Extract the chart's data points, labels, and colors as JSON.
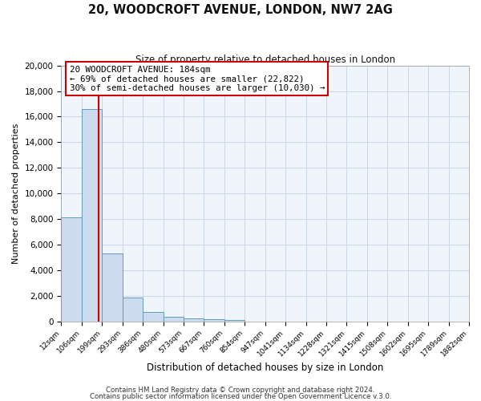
{
  "title": "20, WOODCROFT AVENUE, LONDON, NW7 2AG",
  "subtitle": "Size of property relative to detached houses in London",
  "xlabel": "Distribution of detached houses by size in London",
  "ylabel": "Number of detached properties",
  "bar_values": [
    8150,
    16600,
    5300,
    1850,
    700,
    330,
    220,
    130,
    100,
    0,
    0,
    0,
    0,
    0,
    0,
    0,
    0,
    0,
    0,
    0
  ],
  "bar_labels": [
    "12sqm",
    "106sqm",
    "199sqm",
    "293sqm",
    "386sqm",
    "480sqm",
    "573sqm",
    "667sqm",
    "760sqm",
    "854sqm",
    "947sqm",
    "1041sqm",
    "1134sqm",
    "1228sqm",
    "1321sqm",
    "1415sqm",
    "1508sqm",
    "1602sqm",
    "1695sqm",
    "1789sqm",
    "1882sqm"
  ],
  "bar_color": "#ccdcee",
  "bar_edgecolor": "#6699bb",
  "bar_linewidth": 0.7,
  "bin_edges": [
    12,
    106,
    199,
    293,
    386,
    480,
    573,
    667,
    760,
    854,
    947,
    1041,
    1134,
    1228,
    1321,
    1415,
    1508,
    1602,
    1695,
    1789,
    1882
  ],
  "property_size": 184,
  "property_label": "20 WOODCROFT AVENUE: 184sqm",
  "property_line_color": "#cc0000",
  "annotation_smaller": "← 69% of detached houses are smaller (22,822)",
  "annotation_larger": "30% of semi-detached houses are larger (10,030) →",
  "annotation_box_facecolor": "#ffffff",
  "annotation_box_edgecolor": "#cc0000",
  "ylim": [
    0,
    20000
  ],
  "yticks": [
    0,
    2000,
    4000,
    6000,
    8000,
    10000,
    12000,
    14000,
    16000,
    18000,
    20000
  ],
  "grid_color": "#c8d8e8",
  "background_color": "#ffffff",
  "plot_bg_color": "#f0f5fb",
  "footer1": "Contains HM Land Registry data © Crown copyright and database right 2024.",
  "footer2": "Contains public sector information licensed under the Open Government Licence v.3.0."
}
